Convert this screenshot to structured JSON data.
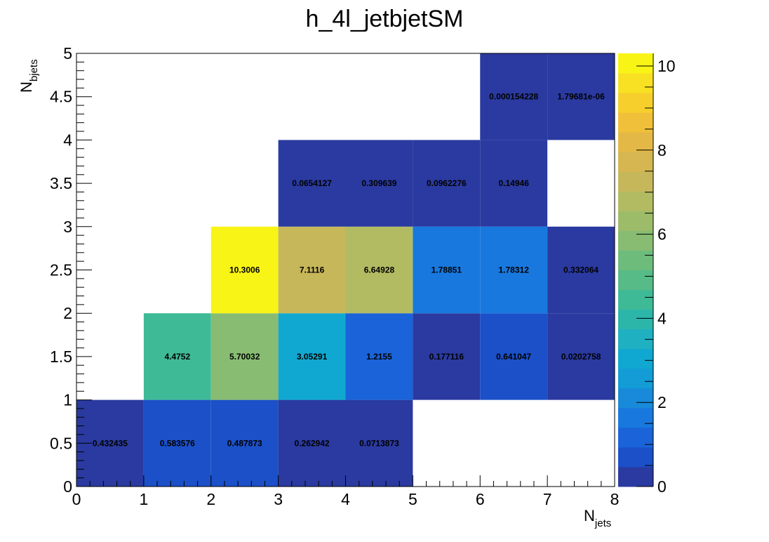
{
  "chart_data": {
    "type": "heatmap",
    "title": "h_4l_jetbjetSM",
    "xlabel": {
      "main": "N",
      "sub": "jets"
    },
    "ylabel": {
      "main": "N",
      "sub": "bjets"
    },
    "xlim": [
      0,
      8
    ],
    "ylim": [
      0,
      5
    ],
    "x_bins": [
      [
        0,
        1
      ],
      [
        1,
        2
      ],
      [
        2,
        3
      ],
      [
        3,
        4
      ],
      [
        4,
        5
      ],
      [
        5,
        6
      ],
      [
        6,
        7
      ],
      [
        7,
        8
      ]
    ],
    "y_bins": [
      [
        0,
        1
      ],
      [
        1,
        2
      ],
      [
        2,
        3
      ],
      [
        3,
        4
      ],
      [
        4,
        5
      ]
    ],
    "x_ticks": [
      "0",
      "1",
      "2",
      "3",
      "4",
      "5",
      "6",
      "7",
      "8"
    ],
    "y_ticks": [
      "0",
      "0.5",
      "1",
      "1.5",
      "2",
      "2.5",
      "3",
      "3.5",
      "4",
      "4.5",
      "5"
    ],
    "y_tick_values": [
      0,
      0.5,
      1,
      1.5,
      2,
      2.5,
      3,
      3.5,
      4,
      4.5,
      5
    ],
    "colorbar": {
      "zlim": [
        0,
        10.3006
      ],
      "ticks": [
        "0",
        "2",
        "4",
        "6",
        "8",
        "10"
      ],
      "tick_values": [
        0,
        2,
        4,
        6,
        8,
        10
      ]
    },
    "cells": [
      {
        "x": 0,
        "y": 0,
        "value": 0.432435,
        "label": "0.432435"
      },
      {
        "x": 1,
        "y": 0,
        "value": 0.583576,
        "label": "0.583576"
      },
      {
        "x": 2,
        "y": 0,
        "value": 0.487873,
        "label": "0.487873"
      },
      {
        "x": 3,
        "y": 0,
        "value": 0.262942,
        "label": "0.262942"
      },
      {
        "x": 4,
        "y": 0,
        "value": 0.0713873,
        "label": "0.0713873"
      },
      {
        "x": 1,
        "y": 1,
        "value": 4.4752,
        "label": "4.4752"
      },
      {
        "x": 2,
        "y": 1,
        "value": 5.70032,
        "label": "5.70032"
      },
      {
        "x": 3,
        "y": 1,
        "value": 3.05291,
        "label": "3.05291"
      },
      {
        "x": 4,
        "y": 1,
        "value": 1.2155,
        "label": "1.2155"
      },
      {
        "x": 5,
        "y": 1,
        "value": 0.177116,
        "label": "0.177116"
      },
      {
        "x": 6,
        "y": 1,
        "value": 0.641047,
        "label": "0.641047"
      },
      {
        "x": 7,
        "y": 1,
        "value": 0.0202758,
        "label": "0.0202758"
      },
      {
        "x": 2,
        "y": 2,
        "value": 10.3006,
        "label": "10.3006"
      },
      {
        "x": 3,
        "y": 2,
        "value": 7.1116,
        "label": "7.1116"
      },
      {
        "x": 4,
        "y": 2,
        "value": 6.64928,
        "label": "6.64928"
      },
      {
        "x": 5,
        "y": 2,
        "value": 1.78851,
        "label": "1.78851"
      },
      {
        "x": 6,
        "y": 2,
        "value": 1.78312,
        "label": "1.78312"
      },
      {
        "x": 7,
        "y": 2,
        "value": 0.332064,
        "label": "0.332064"
      },
      {
        "x": 3,
        "y": 3,
        "value": 0.0654127,
        "label": "0.0654127"
      },
      {
        "x": 4,
        "y": 3,
        "value": 0.309639,
        "label": "0.309639"
      },
      {
        "x": 5,
        "y": 3,
        "value": 0.0962276,
        "label": "0.0962276"
      },
      {
        "x": 6,
        "y": 3,
        "value": 0.14946,
        "label": "0.14946"
      },
      {
        "x": 6,
        "y": 4,
        "value": 0.000154228,
        "label": "0.000154228"
      },
      {
        "x": 7,
        "y": 4,
        "value": 1.79681e-06,
        "label": "1.79681e-06"
      }
    ],
    "palette": [
      "#2a3aa0",
      "#1b50c8",
      "#1a63d9",
      "#1878de",
      "#188ad9",
      "#139cd6",
      "#10a8d0",
      "#1fb0c2",
      "#2cb6aa",
      "#3fba96",
      "#56bb87",
      "#6dbc7c",
      "#88bc72",
      "#9dbc6a",
      "#b3bb62",
      "#c7b75b",
      "#d5b651",
      "#e3b846",
      "#f0c03a",
      "#f7cf2c",
      "#f8e022",
      "#f8f416"
    ]
  }
}
